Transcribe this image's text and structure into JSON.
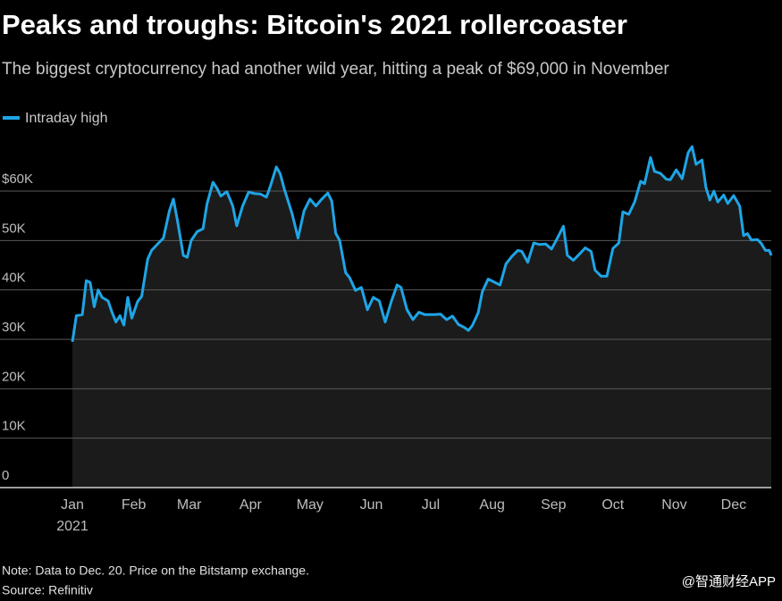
{
  "chart_data": {
    "type": "line",
    "title": "Peaks and troughs: Bitcoin's 2021 rollercoaster",
    "subtitle": "The biggest cryptocurrency had another wild year, hitting a peak of $69,000 in November",
    "x_sublabel": "2021",
    "note": "Note: Data to Dec. 20. Price on the Bitstamp exchange.",
    "source": "Source: Refinitiv",
    "watermark": "@智通财经APP",
    "legend": "top-left",
    "grid": true,
    "x": [
      1,
      3,
      6,
      8,
      10,
      12,
      14,
      16,
      19,
      21,
      23,
      25,
      27,
      29,
      31,
      34,
      36,
      39,
      41,
      45,
      47,
      50,
      52,
      54,
      57,
      59,
      61,
      64,
      67,
      69,
      72,
      74,
      76,
      79,
      82,
      84,
      87,
      90,
      93,
      96,
      99,
      101,
      104,
      106,
      108,
      112,
      115,
      118,
      121,
      124,
      127,
      130,
      132,
      134,
      136,
      139,
      141,
      144,
      147,
      150,
      153,
      156,
      159,
      162,
      165,
      167,
      170,
      173,
      176,
      179,
      182,
      184,
      187,
      190,
      193,
      196,
      199,
      201,
      203,
      206,
      208,
      211,
      214,
      217,
      220,
      223,
      226,
      228,
      231,
      234,
      237,
      240,
      243,
      246,
      249,
      251,
      254,
      257,
      260,
      263,
      265,
      268,
      271,
      274,
      277,
      279,
      282,
      285,
      288,
      290,
      293,
      295,
      298,
      301,
      303,
      306,
      309,
      312,
      314,
      316,
      319,
      321,
      323,
      325,
      327,
      330,
      332,
      335,
      338,
      340,
      342,
      344,
      347,
      349,
      351,
      353,
      354
    ],
    "series": [
      {
        "name": "Intraday high",
        "color": "#1ea5e6",
        "values": [
          29500,
          34800,
          35000,
          41900,
          41500,
          36600,
          40000,
          38500,
          37800,
          35500,
          33500,
          34800,
          32900,
          38500,
          34300,
          37700,
          38700,
          46200,
          48000,
          49700,
          50500,
          56000,
          58400,
          54200,
          47000,
          46600,
          50000,
          51800,
          52400,
          57400,
          61800,
          60600,
          59000,
          59900,
          57000,
          53000,
          57000,
          59800,
          59500,
          59400,
          58800,
          61000,
          64900,
          63500,
          60500,
          55400,
          50500,
          56000,
          58400,
          57000,
          58400,
          59600,
          58000,
          51500,
          50000,
          43500,
          42500,
          39900,
          40500,
          36000,
          38500,
          37800,
          33500,
          37600,
          41000,
          40500,
          36000,
          34000,
          35500,
          35000,
          35000,
          35000,
          35100,
          34000,
          34700,
          33000,
          32400,
          31800,
          32800,
          35400,
          39600,
          42200,
          41600,
          41000,
          45300,
          46800,
          48000,
          47800,
          45600,
          49500,
          49200,
          49300,
          48300,
          50500,
          52900,
          47000,
          46000,
          47200,
          48500,
          47800,
          44000,
          42800,
          42800,
          48400,
          49500,
          55800,
          55300,
          57800,
          62000,
          61500,
          66800,
          64000,
          63600,
          62400,
          62300,
          64300,
          62500,
          67800,
          69000,
          65400,
          66300,
          60700,
          58200,
          60000,
          57800,
          59200,
          57500,
          59100,
          57000,
          51000,
          51400,
          50100,
          50200,
          49400,
          48000,
          48000,
          47000
        ]
      }
    ],
    "xlim": [
      1,
      354
    ],
    "xticks": [
      {
        "value": 1,
        "label": "Jan"
      },
      {
        "value": 32,
        "label": "Feb"
      },
      {
        "value": 60,
        "label": "Mar"
      },
      {
        "value": 91,
        "label": "Apr"
      },
      {
        "value": 121,
        "label": "May"
      },
      {
        "value": 152,
        "label": "Jun"
      },
      {
        "value": 182,
        "label": "Jul"
      },
      {
        "value": 213,
        "label": "Aug"
      },
      {
        "value": 244,
        "label": "Sep"
      },
      {
        "value": 274,
        "label": "Oct"
      },
      {
        "value": 305,
        "label": "Nov"
      },
      {
        "value": 335,
        "label": "Dec"
      }
    ],
    "ylim": [
      0,
      70000
    ],
    "yticks": [
      0,
      {
        "value": 10000,
        "label": "10K"
      },
      {
        "value": 20000,
        "label": "20K"
      },
      {
        "value": 30000,
        "label": "30K"
      },
      {
        "value": 40000,
        "label": "40K"
      },
      {
        "value": 50000,
        "label": "50K"
      },
      {
        "value": 60000,
        "label": "$60K"
      }
    ]
  }
}
